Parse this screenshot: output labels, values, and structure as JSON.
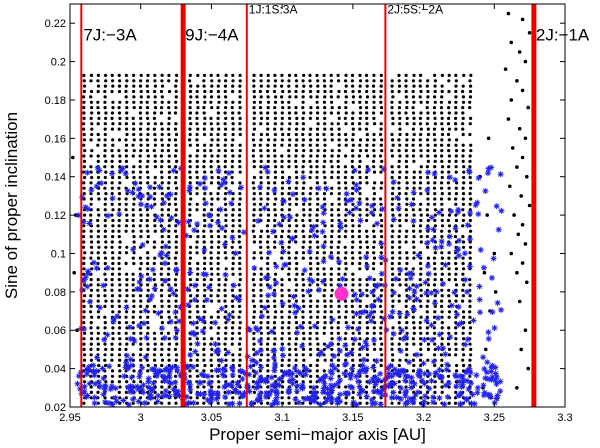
{
  "chart_data": {
    "type": "scatter",
    "xlabel": "Proper semi−major axis [AU]",
    "ylabel": "Sine of proper inclination",
    "xlim": [
      2.95,
      3.3
    ],
    "ylim": [
      0.02,
      0.23
    ],
    "x_ticks": [
      "2.95",
      "3",
      "3.05",
      "3.1",
      "3.15",
      "3.2",
      "3.25",
      "3.3"
    ],
    "y_ticks": [
      "0.02",
      "0.04",
      "0.06",
      "0.08",
      "0.1",
      "0.12",
      "0.14",
      "0.16",
      "0.18",
      "0.2",
      "0.22"
    ],
    "x_tick_values": [
      2.95,
      3.0,
      3.05,
      3.1,
      3.15,
      3.2,
      3.25,
      3.3
    ],
    "y_tick_values": [
      0.02,
      0.04,
      0.06,
      0.08,
      0.1,
      0.12,
      0.14,
      0.16,
      0.18,
      0.2,
      0.22
    ],
    "grid": false,
    "resonances": [
      {
        "label": "7J:−3A",
        "x": 2.958,
        "width": "thin",
        "label_size": "big",
        "label_y": 0.211
      },
      {
        "label": "9J:−4A",
        "x": 3.03,
        "width": "thick",
        "label_size": "big",
        "label_y": 0.211
      },
      {
        "label": "1J:1S:3A",
        "x": 3.075,
        "width": "thin",
        "label_size": "small",
        "label_y": 0.225
      },
      {
        "label": "2J:5S:−2A",
        "x": 3.173,
        "width": "thin",
        "label_size": "small",
        "label_y": 0.225
      },
      {
        "label": "2J:−1A",
        "x": 3.278,
        "width": "thick",
        "label_size": "big",
        "label_y": 0.211
      }
    ],
    "grid_series": {
      "columns_x": [
        2.96,
        2.965,
        2.97,
        2.975,
        2.98,
        2.985,
        2.99,
        2.995,
        3.0,
        3.005,
        3.01,
        3.015,
        3.02,
        3.025,
        3.035,
        3.04,
        3.045,
        3.05,
        3.055,
        3.06,
        3.065,
        3.07,
        3.08,
        3.085,
        3.09,
        3.095,
        3.1,
        3.105,
        3.11,
        3.115,
        3.12,
        3.125,
        3.13,
        3.135,
        3.14,
        3.145,
        3.15,
        3.155,
        3.16,
        3.165,
        3.17,
        3.178,
        3.183,
        3.188,
        3.193,
        3.198,
        3.203,
        3.208,
        3.213,
        3.218,
        3.223,
        3.228,
        3.233
      ],
      "y_min": 0.022,
      "y_max": 0.195,
      "y_step": 0.0028
    },
    "scattered_black_points": [
      [
        3.26,
        0.225
      ],
      [
        3.27,
        0.222
      ],
      [
        3.275,
        0.215
      ],
      [
        3.262,
        0.21
      ],
      [
        3.268,
        0.205
      ],
      [
        3.272,
        0.2
      ],
      [
        3.258,
        0.196
      ],
      [
        3.266,
        0.19
      ],
      [
        3.27,
        0.185
      ],
      [
        3.262,
        0.18
      ],
      [
        3.274,
        0.176
      ],
      [
        3.26,
        0.17
      ],
      [
        3.268,
        0.165
      ],
      [
        3.272,
        0.16
      ],
      [
        3.263,
        0.155
      ],
      [
        3.27,
        0.15
      ],
      [
        3.266,
        0.145
      ],
      [
        3.273,
        0.14
      ],
      [
        3.261,
        0.135
      ],
      [
        3.269,
        0.13
      ],
      [
        3.275,
        0.125
      ],
      [
        3.264,
        0.12
      ],
      [
        3.27,
        0.115
      ],
      [
        3.267,
        0.11
      ],
      [
        3.272,
        0.105
      ],
      [
        3.262,
        0.1
      ],
      [
        3.27,
        0.095
      ],
      [
        3.266,
        0.09
      ],
      [
        3.273,
        0.085
      ],
      [
        3.268,
        0.075
      ],
      [
        3.272,
        0.06
      ],
      [
        3.269,
        0.05
      ],
      [
        3.274,
        0.04
      ],
      [
        3.266,
        0.03
      ],
      [
        3.24,
        0.14
      ],
      [
        3.245,
        0.12
      ],
      [
        3.243,
        0.09
      ],
      [
        3.247,
        0.07
      ],
      [
        3.244,
        0.05
      ],
      [
        3.242,
        0.03
      ],
      [
        3.248,
        0.025
      ],
      [
        2.952,
        0.15
      ],
      [
        2.954,
        0.12
      ],
      [
        2.953,
        0.09
      ],
      [
        2.955,
        0.06
      ],
      [
        3.25,
        0.1
      ],
      [
        3.251,
        0.08
      ],
      [
        3.246,
        0.16
      ]
    ],
    "highlight_point": {
      "x": 3.142,
      "y": 0.079,
      "color": "#ff33cc"
    },
    "colors": {
      "black_points": "#000000",
      "blue_stars": "#2222ee",
      "resonance_lines": "#ee0000",
      "highlight": "#ff33cc"
    }
  }
}
